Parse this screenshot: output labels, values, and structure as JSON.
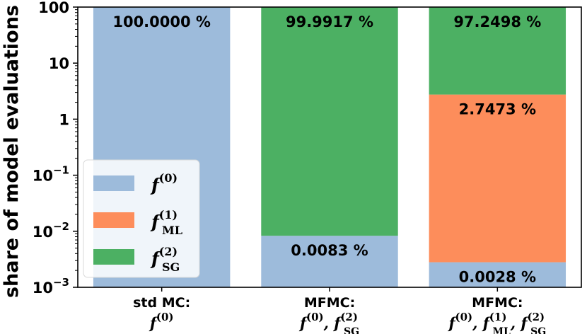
{
  "chart_data": {
    "type": "bar",
    "stacked": true,
    "yscale": "log",
    "ylim": [
      0.001,
      100
    ],
    "ylabel": "share of model evaluations",
    "yticks": [
      {
        "value": 0.001,
        "base": "10",
        "exp": "−3"
      },
      {
        "value": 0.01,
        "base": "10",
        "exp": "−2"
      },
      {
        "value": 0.1,
        "base": "10",
        "exp": "−1"
      },
      {
        "value": 1,
        "base": "1",
        "exp": ""
      },
      {
        "value": 10,
        "base": "10",
        "exp": ""
      },
      {
        "value": 100,
        "base": "100",
        "exp": ""
      }
    ],
    "categories": [
      {
        "line1": "std MC:",
        "line2": "f⁽⁰⁾"
      },
      {
        "line1": "MFMC:",
        "line2": "f⁽⁰⁾, f_SG⁽²⁾"
      },
      {
        "line1": "MFMC:",
        "line2": "f⁽⁰⁾, f_ML⁽¹⁾, f_SG⁽²⁾"
      }
    ],
    "series": [
      {
        "name": "f⁽⁰⁾",
        "color": "#9dbbdb",
        "values": [
          100.0,
          0.0083,
          0.0028
        ],
        "labels": [
          "100.0000 %",
          "0.0083 %",
          "0.0028 %"
        ]
      },
      {
        "name": "f_ML⁽¹⁾",
        "color": "#fd8d5b",
        "values": [
          0,
          0,
          2.7473
        ],
        "labels": [
          "",
          "",
          "2.7473 %"
        ]
      },
      {
        "name": "f_SG⁽²⁾",
        "color": "#4cb063",
        "values": [
          0,
          99.9917,
          97.2498
        ],
        "labels": [
          "",
          "99.9917 %",
          "97.2498 %"
        ]
      }
    ],
    "legend": {
      "placement": "lower-left",
      "entries": [
        {
          "sym": "f",
          "sub": "",
          "sup": "(0)",
          "color": "#9dbbdb"
        },
        {
          "sym": "f",
          "sub": "ML",
          "sup": "(1)",
          "color": "#fd8d5b"
        },
        {
          "sym": "f",
          "sub": "SG",
          "sup": "(2)",
          "color": "#4cb063"
        }
      ]
    }
  }
}
